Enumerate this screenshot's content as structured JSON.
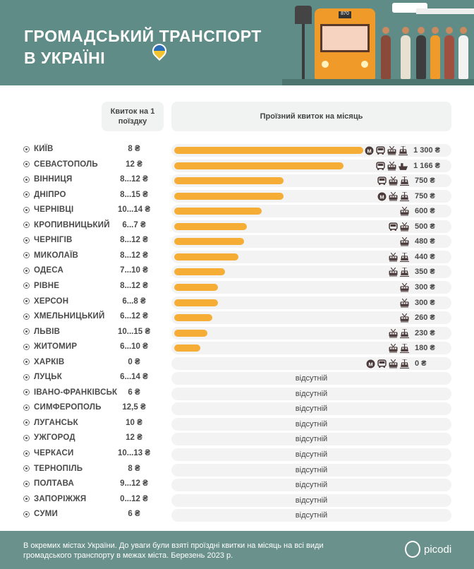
{
  "header": {
    "title_line1": "ГРОМАДСЬКИЙ ТРАНСПОРТ",
    "title_line2": "В УКРАЇНІ",
    "bus_number": "870"
  },
  "columns": {
    "single": "Квиток на 1 поїздку",
    "monthly": "Проїзний квиток на місяць"
  },
  "absent_label": "відсутній",
  "colors": {
    "bar": "#f5ad35",
    "header": "#5f8c86",
    "footer": "#6a918b"
  },
  "chart_data": {
    "type": "bar",
    "title": "ГРОМАДСЬКИЙ ТРАНСПОРТ В УКРАЇНІ",
    "xlabel": "Проїзний квиток на місяць",
    "ylabel": "",
    "xlim": [
      0,
      1300
    ],
    "rows": [
      {
        "city": "КИЇВ",
        "single": "8 ₴",
        "monthly": 1300,
        "label": "1 300 ₴",
        "icons": [
          "metro",
          "bus",
          "trolleybus",
          "tram"
        ]
      },
      {
        "city": "СЕВАСТОПОЛЬ",
        "single": "12 ₴",
        "monthly": 1166,
        "label": "1 166 ₴",
        "icons": [
          "bus",
          "trolleybus",
          "ferry"
        ]
      },
      {
        "city": "ВІННИЦЯ",
        "single": "8...12 ₴",
        "monthly": 750,
        "label": "750 ₴",
        "icons": [
          "bus",
          "trolleybus",
          "tram"
        ]
      },
      {
        "city": "ДНІПРО",
        "single": "8...15 ₴",
        "monthly": 750,
        "label": "750 ₴",
        "icons": [
          "metro",
          "trolleybus",
          "tram"
        ]
      },
      {
        "city": "ЧЕРНІВЦІ",
        "single": "10...14 ₴",
        "monthly": 600,
        "label": "600 ₴",
        "icons": [
          "trolleybus"
        ]
      },
      {
        "city": "КРОПИВНИЦЬКИЙ",
        "single": "6...7 ₴",
        "monthly": 500,
        "label": "500 ₴",
        "icons": [
          "bus",
          "trolleybus"
        ]
      },
      {
        "city": "ЧЕРНІГІВ",
        "single": "8...12 ₴",
        "monthly": 480,
        "label": "480 ₴",
        "icons": [
          "trolleybus"
        ]
      },
      {
        "city": "МИКОЛАЇВ",
        "single": "8...12 ₴",
        "monthly": 440,
        "label": "440 ₴",
        "icons": [
          "trolleybus",
          "tram"
        ]
      },
      {
        "city": "ОДЕСА",
        "single": "7...10 ₴",
        "monthly": 350,
        "label": "350 ₴",
        "icons": [
          "trolleybus",
          "tram"
        ]
      },
      {
        "city": "РІВНЕ",
        "single": "8...12 ₴",
        "monthly": 300,
        "label": "300 ₴",
        "icons": [
          "trolleybus"
        ]
      },
      {
        "city": "ХЕРСОН",
        "single": "6...8 ₴",
        "monthly": 300,
        "label": "300 ₴",
        "icons": [
          "trolleybus"
        ]
      },
      {
        "city": "ХМЕЛЬНИЦЬКИЙ",
        "single": "6...12 ₴",
        "monthly": 260,
        "label": "260 ₴",
        "icons": [
          "trolleybus"
        ]
      },
      {
        "city": "ЛЬВІВ",
        "single": "10...15 ₴",
        "monthly": 230,
        "label": "230 ₴",
        "icons": [
          "trolleybus",
          "tram"
        ]
      },
      {
        "city": "ЖИТОМИР",
        "single": "6...10 ₴",
        "monthly": 180,
        "label": "180 ₴",
        "icons": [
          "trolleybus",
          "tram"
        ]
      },
      {
        "city": "ХАРКІВ",
        "single": "0 ₴",
        "monthly": 0,
        "label": "0 ₴",
        "icons": [
          "metro",
          "bus",
          "trolleybus",
          "tram"
        ]
      },
      {
        "city": "ЛУЦЬК",
        "single": "6...14 ₴",
        "monthly": null,
        "label": null,
        "icons": []
      },
      {
        "city": "ІВАНО-ФРАНКІВСЬК",
        "single": "6 ₴",
        "monthly": null,
        "label": null,
        "icons": []
      },
      {
        "city": "СИМФЕРОПОЛЬ",
        "single": "12,5 ₴",
        "monthly": null,
        "label": null,
        "icons": []
      },
      {
        "city": "ЛУГАНСЬК",
        "single": "10 ₴",
        "monthly": null,
        "label": null,
        "icons": []
      },
      {
        "city": "УЖГОРОД",
        "single": "12 ₴",
        "monthly": null,
        "label": null,
        "icons": []
      },
      {
        "city": "ЧЕРКАСИ",
        "single": "10...13 ₴",
        "monthly": null,
        "label": null,
        "icons": []
      },
      {
        "city": "ТЕРНОПІЛЬ",
        "single": "8 ₴",
        "monthly": null,
        "label": null,
        "icons": []
      },
      {
        "city": "ПОЛТАВА",
        "single": "9...12 ₴",
        "monthly": null,
        "label": null,
        "icons": []
      },
      {
        "city": "ЗАПОРІЖЖЯ",
        "single": "0...12 ₴",
        "monthly": null,
        "label": null,
        "icons": []
      },
      {
        "city": "СУМИ",
        "single": "6 ₴",
        "monthly": null,
        "label": null,
        "icons": []
      }
    ]
  },
  "footer": {
    "note": "В окремих містах України. До уваги були взяті проїздні квитки на місяць на всі види громадського транспорту в межах міста. Березень 2023 р.",
    "brand": "picodi"
  }
}
